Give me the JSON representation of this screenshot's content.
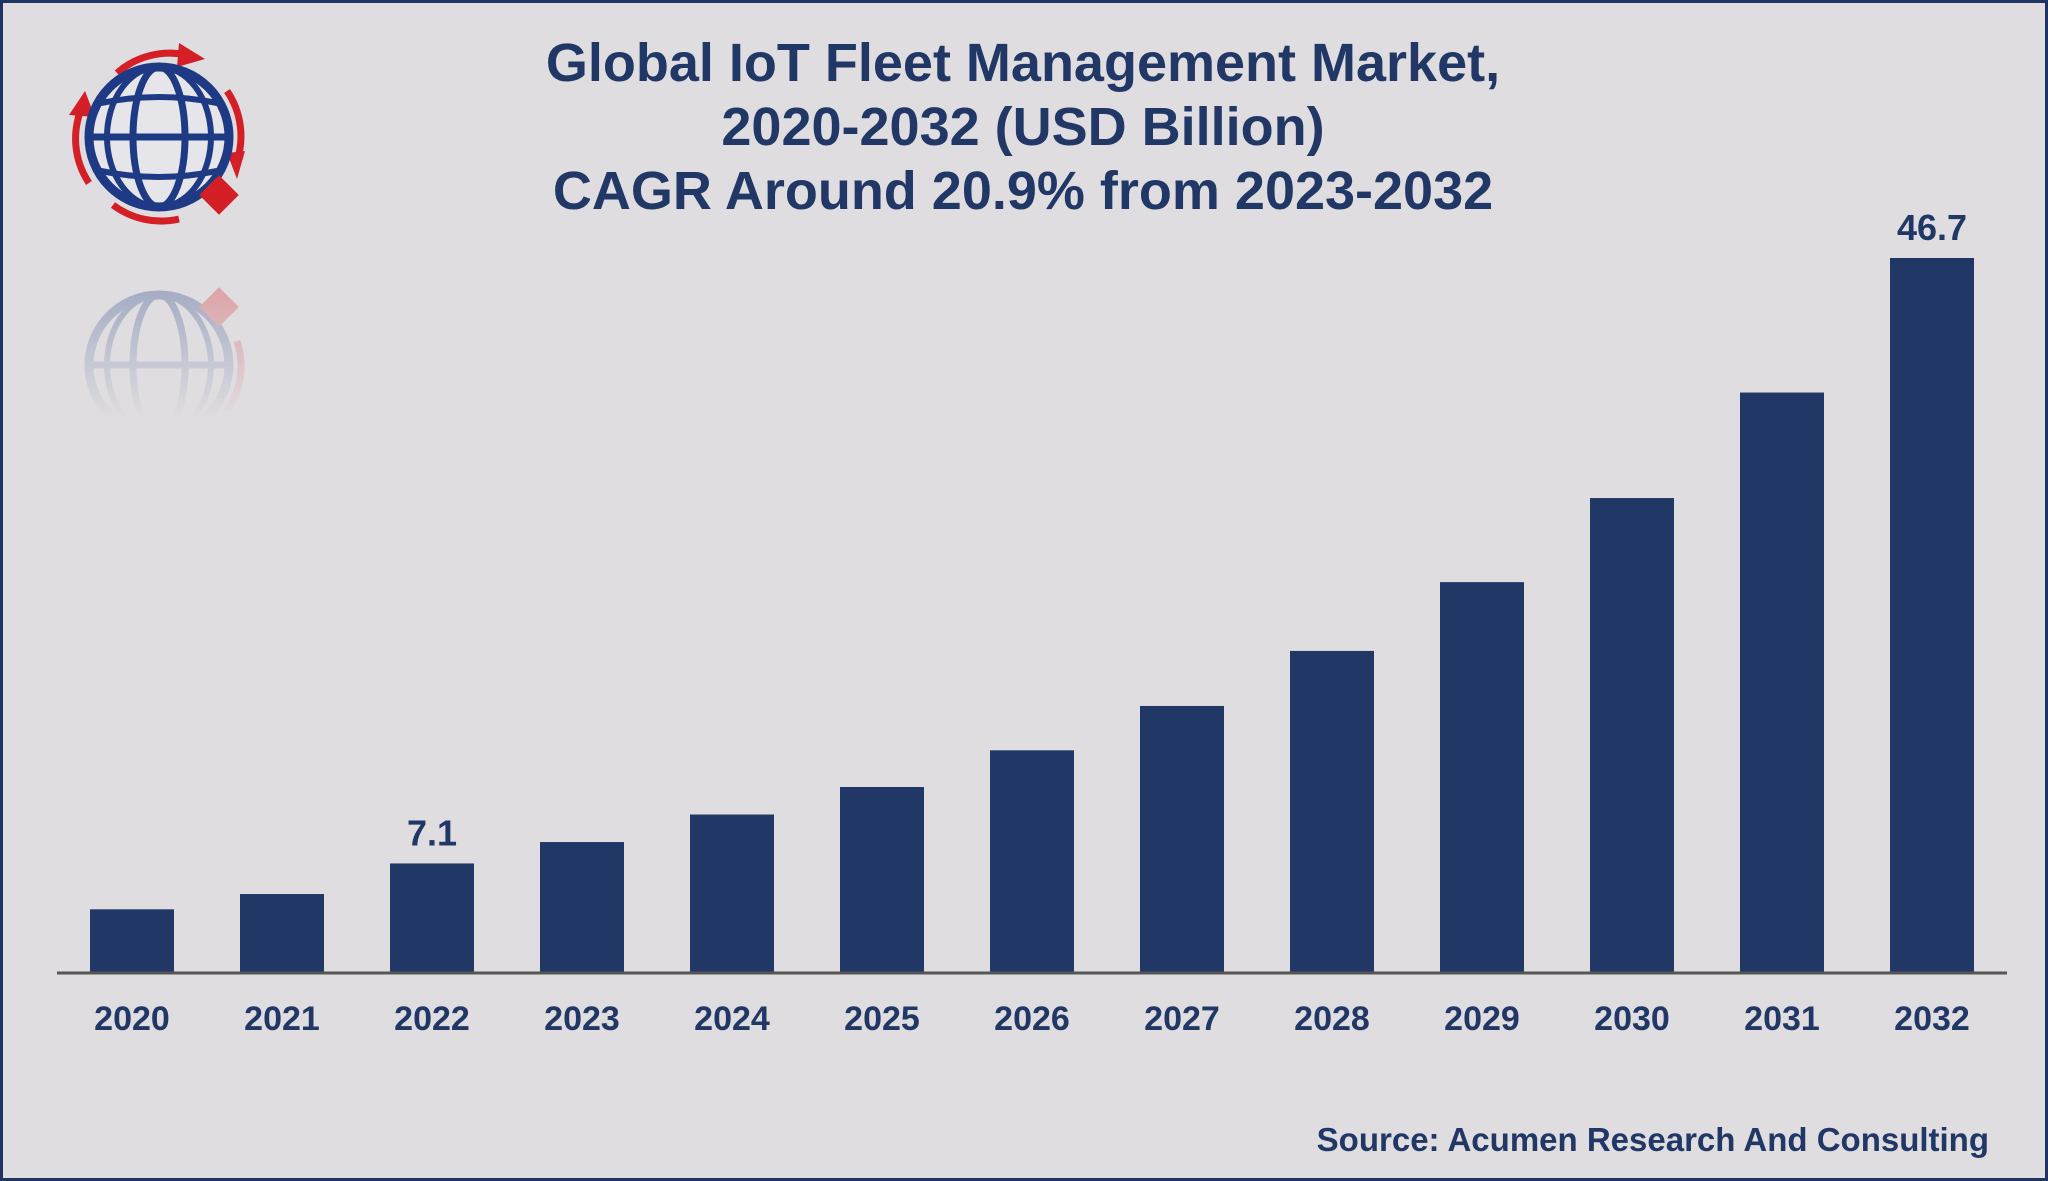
{
  "title_lines": [
    "Global IoT Fleet Management Market,",
    "2020-2032 (USD Billion)",
    "CAGR Around 20.9% from 2023-2032"
  ],
  "source": "Source: Acumen Research And Consulting",
  "logo": {
    "icon": "globe-icon",
    "colors": {
      "globe": "#1f3a84",
      "accent": "#d51f26"
    }
  },
  "colors": {
    "bar": "#213766",
    "background": "#dfdde0",
    "frame": "#1f3461",
    "text": "#213766",
    "axis": "#555555"
  },
  "chart_data": {
    "type": "bar",
    "categories": [
      "2020",
      "2021",
      "2022",
      "2023",
      "2024",
      "2025",
      "2026",
      "2027",
      "2028",
      "2029",
      "2030",
      "2031",
      "2032"
    ],
    "values": [
      4.1,
      5.1,
      7.1,
      8.5,
      10.3,
      12.1,
      14.5,
      17.4,
      21.0,
      25.5,
      31.0,
      37.9,
      46.7
    ],
    "data_labels": [
      {
        "index": 2,
        "text": "7.1"
      },
      {
        "index": 12,
        "text": "46.7"
      }
    ],
    "ylim": [
      0,
      46.7
    ],
    "grid": false,
    "legend": "none"
  }
}
